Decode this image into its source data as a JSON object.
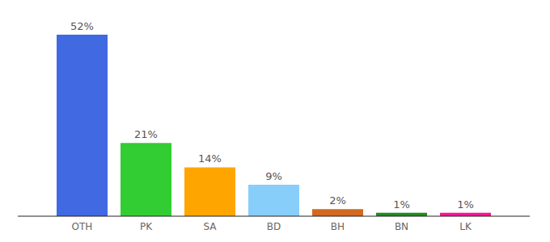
{
  "chart_data": {
    "type": "bar",
    "categories": [
      "OTH",
      "PK",
      "SA",
      "BD",
      "BH",
      "BN",
      "LK"
    ],
    "values": [
      52,
      21,
      14,
      9,
      2,
      1,
      1
    ],
    "value_labels": [
      "52%",
      "21%",
      "14%",
      "9%",
      "2%",
      "1%",
      "1%"
    ],
    "colors": [
      "#4169e1",
      "#32cd32",
      "#ffa500",
      "#87cefa",
      "#d2691e",
      "#228b22",
      "#ff1493"
    ],
    "ylim": [
      0,
      52
    ],
    "data_labels": true,
    "tick_labels": "x"
  }
}
